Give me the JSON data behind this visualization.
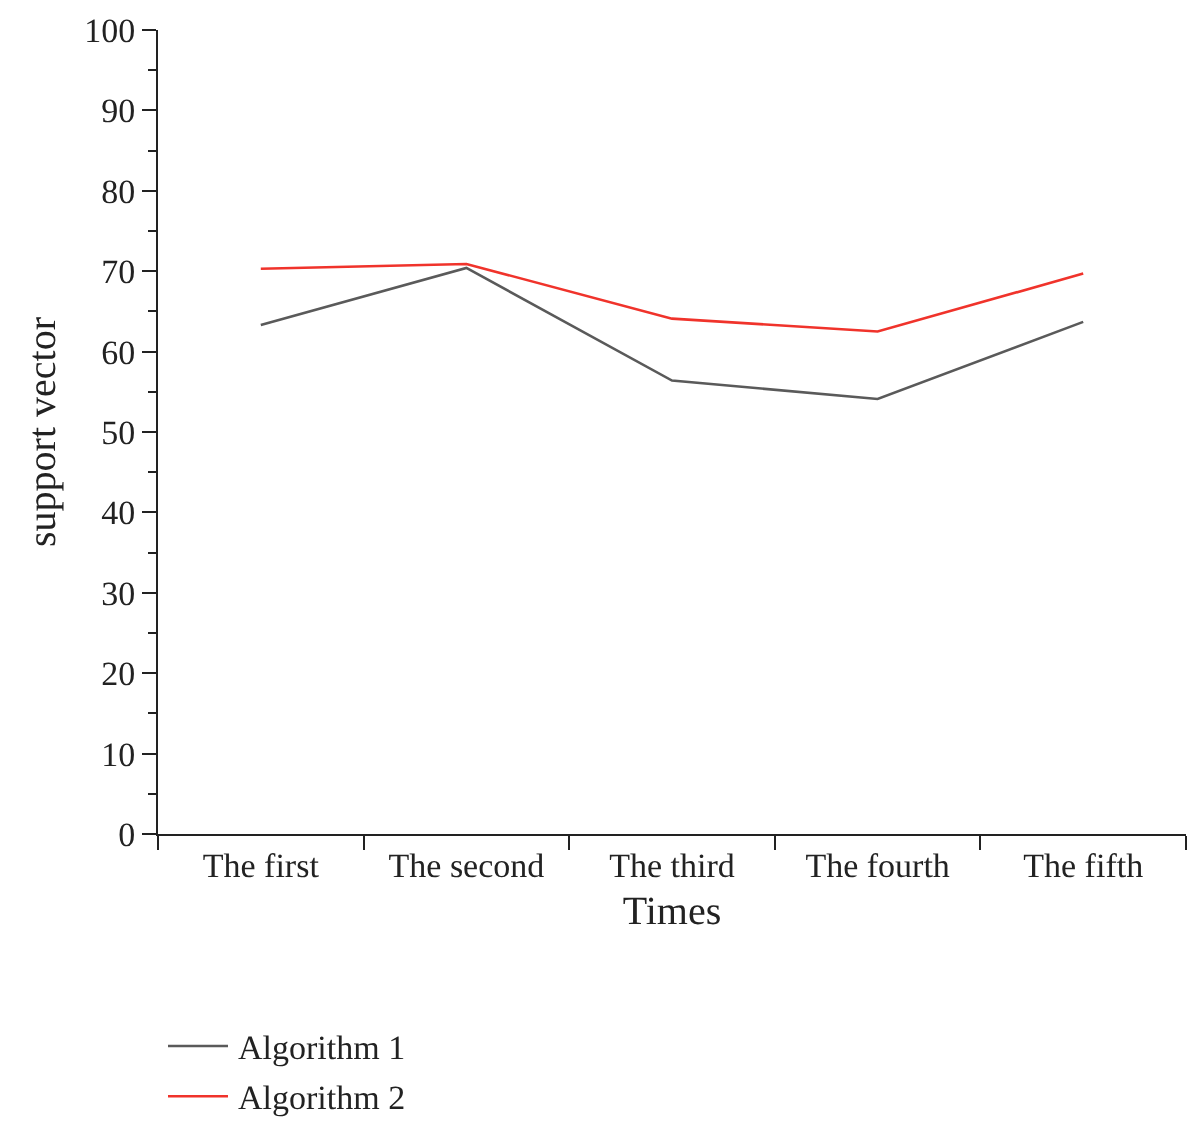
{
  "chart_data": {
    "type": "line",
    "xlabel": "Times",
    "ylabel": "support vector",
    "categories": [
      "The first",
      "The second",
      "The third",
      "The fourth",
      "The fifth"
    ],
    "series": [
      {
        "name": "Algorithm 1",
        "color": "#5a5a5a",
        "values": [
          63.3,
          70.4,
          56.4,
          54.1,
          63.7
        ]
      },
      {
        "name": "Algorithm 2",
        "color": "#f0332b",
        "values": [
          70.3,
          70.9,
          64.1,
          62.5,
          69.7
        ]
      }
    ],
    "ylim": [
      0,
      100
    ],
    "yticks": [
      0,
      10,
      20,
      30,
      40,
      50,
      60,
      70,
      80,
      90,
      100
    ],
    "legend": "bottom left",
    "marker": "none",
    "line_style": "solid"
  }
}
